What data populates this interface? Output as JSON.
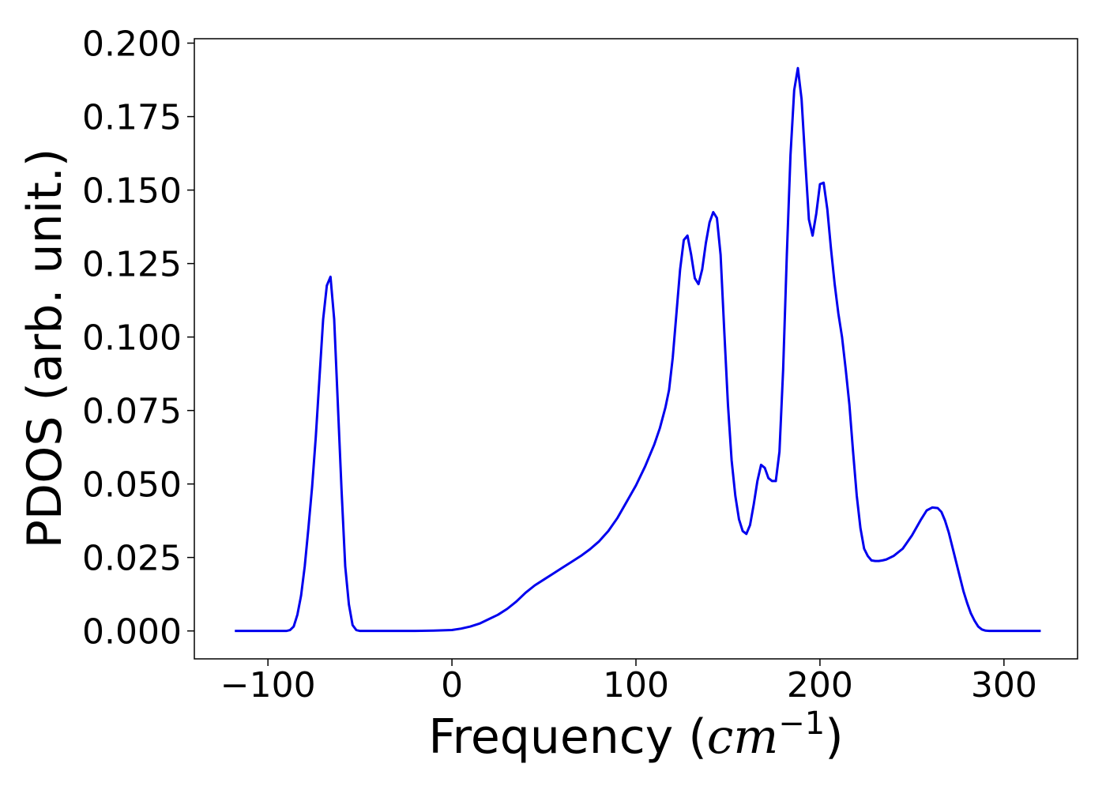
{
  "chart_data": {
    "type": "line",
    "title": "",
    "xlabel_prefix": "Frequency (",
    "xlabel_unit": "cm",
    "xlabel_exponent": "−1",
    "xlabel_suffix": ")",
    "ylabel": "PDOS (arb. unit.)",
    "xlim": [
      -140,
      340
    ],
    "ylim": [
      -0.0095,
      0.2015
    ],
    "xticks": [
      -100,
      0,
      100,
      200,
      300
    ],
    "xtick_labels": [
      "−100",
      "0",
      "100",
      "200",
      "300"
    ],
    "yticks": [
      0.0,
      0.025,
      0.05,
      0.075,
      0.1,
      0.125,
      0.15,
      0.175,
      0.2
    ],
    "ytick_labels": [
      "0.000",
      "0.025",
      "0.050",
      "0.075",
      "0.100",
      "0.125",
      "0.150",
      "0.175",
      "0.200"
    ],
    "grid": false,
    "legend": "none",
    "line_color": "#0000ee",
    "series": [
      {
        "x": [
          -118,
          -95,
          -90,
          -88,
          -86,
          -84,
          -82,
          -80,
          -78,
          -76,
          -74,
          -72,
          -70,
          -68,
          -66,
          -64,
          -62,
          -60,
          -58,
          -56,
          -54,
          -52,
          -50,
          -48,
          -46,
          -40,
          -30,
          -20,
          -10,
          0,
          5,
          10,
          15,
          20,
          25,
          30,
          35,
          40,
          45,
          50,
          55,
          60,
          65,
          70,
          75,
          80,
          85,
          90,
          95,
          100,
          105,
          110,
          113,
          116,
          118,
          120,
          122,
          124,
          126,
          128,
          130,
          132,
          134,
          136,
          138,
          140,
          142,
          144,
          146,
          148,
          150,
          152,
          154,
          156,
          158,
          160,
          162,
          164,
          166,
          168,
          170,
          172,
          174,
          176,
          178,
          180,
          182,
          184,
          186,
          188,
          190,
          192,
          194,
          196,
          198,
          200,
          202,
          204,
          206,
          208,
          210,
          212,
          214,
          216,
          218,
          220,
          222,
          224,
          226,
          228,
          230,
          232,
          234,
          236,
          240,
          245,
          250,
          255,
          258,
          261,
          264,
          266,
          268,
          270,
          272,
          274,
          276,
          278,
          280,
          282,
          284,
          286,
          288,
          290,
          292,
          295,
          300,
          320
        ],
        "y": [
          0,
          0,
          0,
          0.0003,
          0.0015,
          0.0055,
          0.012,
          0.022,
          0.035,
          0.049,
          0.066,
          0.086,
          0.106,
          0.1175,
          0.1205,
          0.106,
          0.077,
          0.048,
          0.022,
          0.009,
          0.002,
          0.0003,
          0,
          0,
          0,
          0,
          0,
          0,
          0.0001,
          0.0003,
          0.0008,
          0.0015,
          0.0025,
          0.004,
          0.0055,
          0.0075,
          0.01,
          0.013,
          0.0155,
          0.0175,
          0.0195,
          0.0215,
          0.0235,
          0.0255,
          0.0278,
          0.0305,
          0.034,
          0.0385,
          0.044,
          0.0495,
          0.056,
          0.0635,
          0.069,
          0.076,
          0.082,
          0.093,
          0.108,
          0.123,
          0.133,
          0.1345,
          0.128,
          0.12,
          0.118,
          0.123,
          0.132,
          0.139,
          0.1425,
          0.1405,
          0.128,
          0.102,
          0.077,
          0.058,
          0.046,
          0.038,
          0.034,
          0.033,
          0.036,
          0.043,
          0.051,
          0.0565,
          0.0555,
          0.052,
          0.051,
          0.051,
          0.061,
          0.089,
          0.128,
          0.162,
          0.184,
          0.1915,
          0.181,
          0.16,
          0.14,
          0.1345,
          0.142,
          0.152,
          0.1525,
          0.1435,
          0.13,
          0.118,
          0.108,
          0.1,
          0.089,
          0.077,
          0.061,
          0.046,
          0.035,
          0.028,
          0.0255,
          0.024,
          0.0238,
          0.0238,
          0.024,
          0.0243,
          0.0255,
          0.028,
          0.0325,
          0.038,
          0.041,
          0.042,
          0.0418,
          0.0405,
          0.0375,
          0.0335,
          0.0285,
          0.0235,
          0.0185,
          0.0135,
          0.0095,
          0.006,
          0.0035,
          0.0015,
          0.0005,
          0.0001,
          0,
          0,
          0,
          0
        ]
      }
    ]
  }
}
